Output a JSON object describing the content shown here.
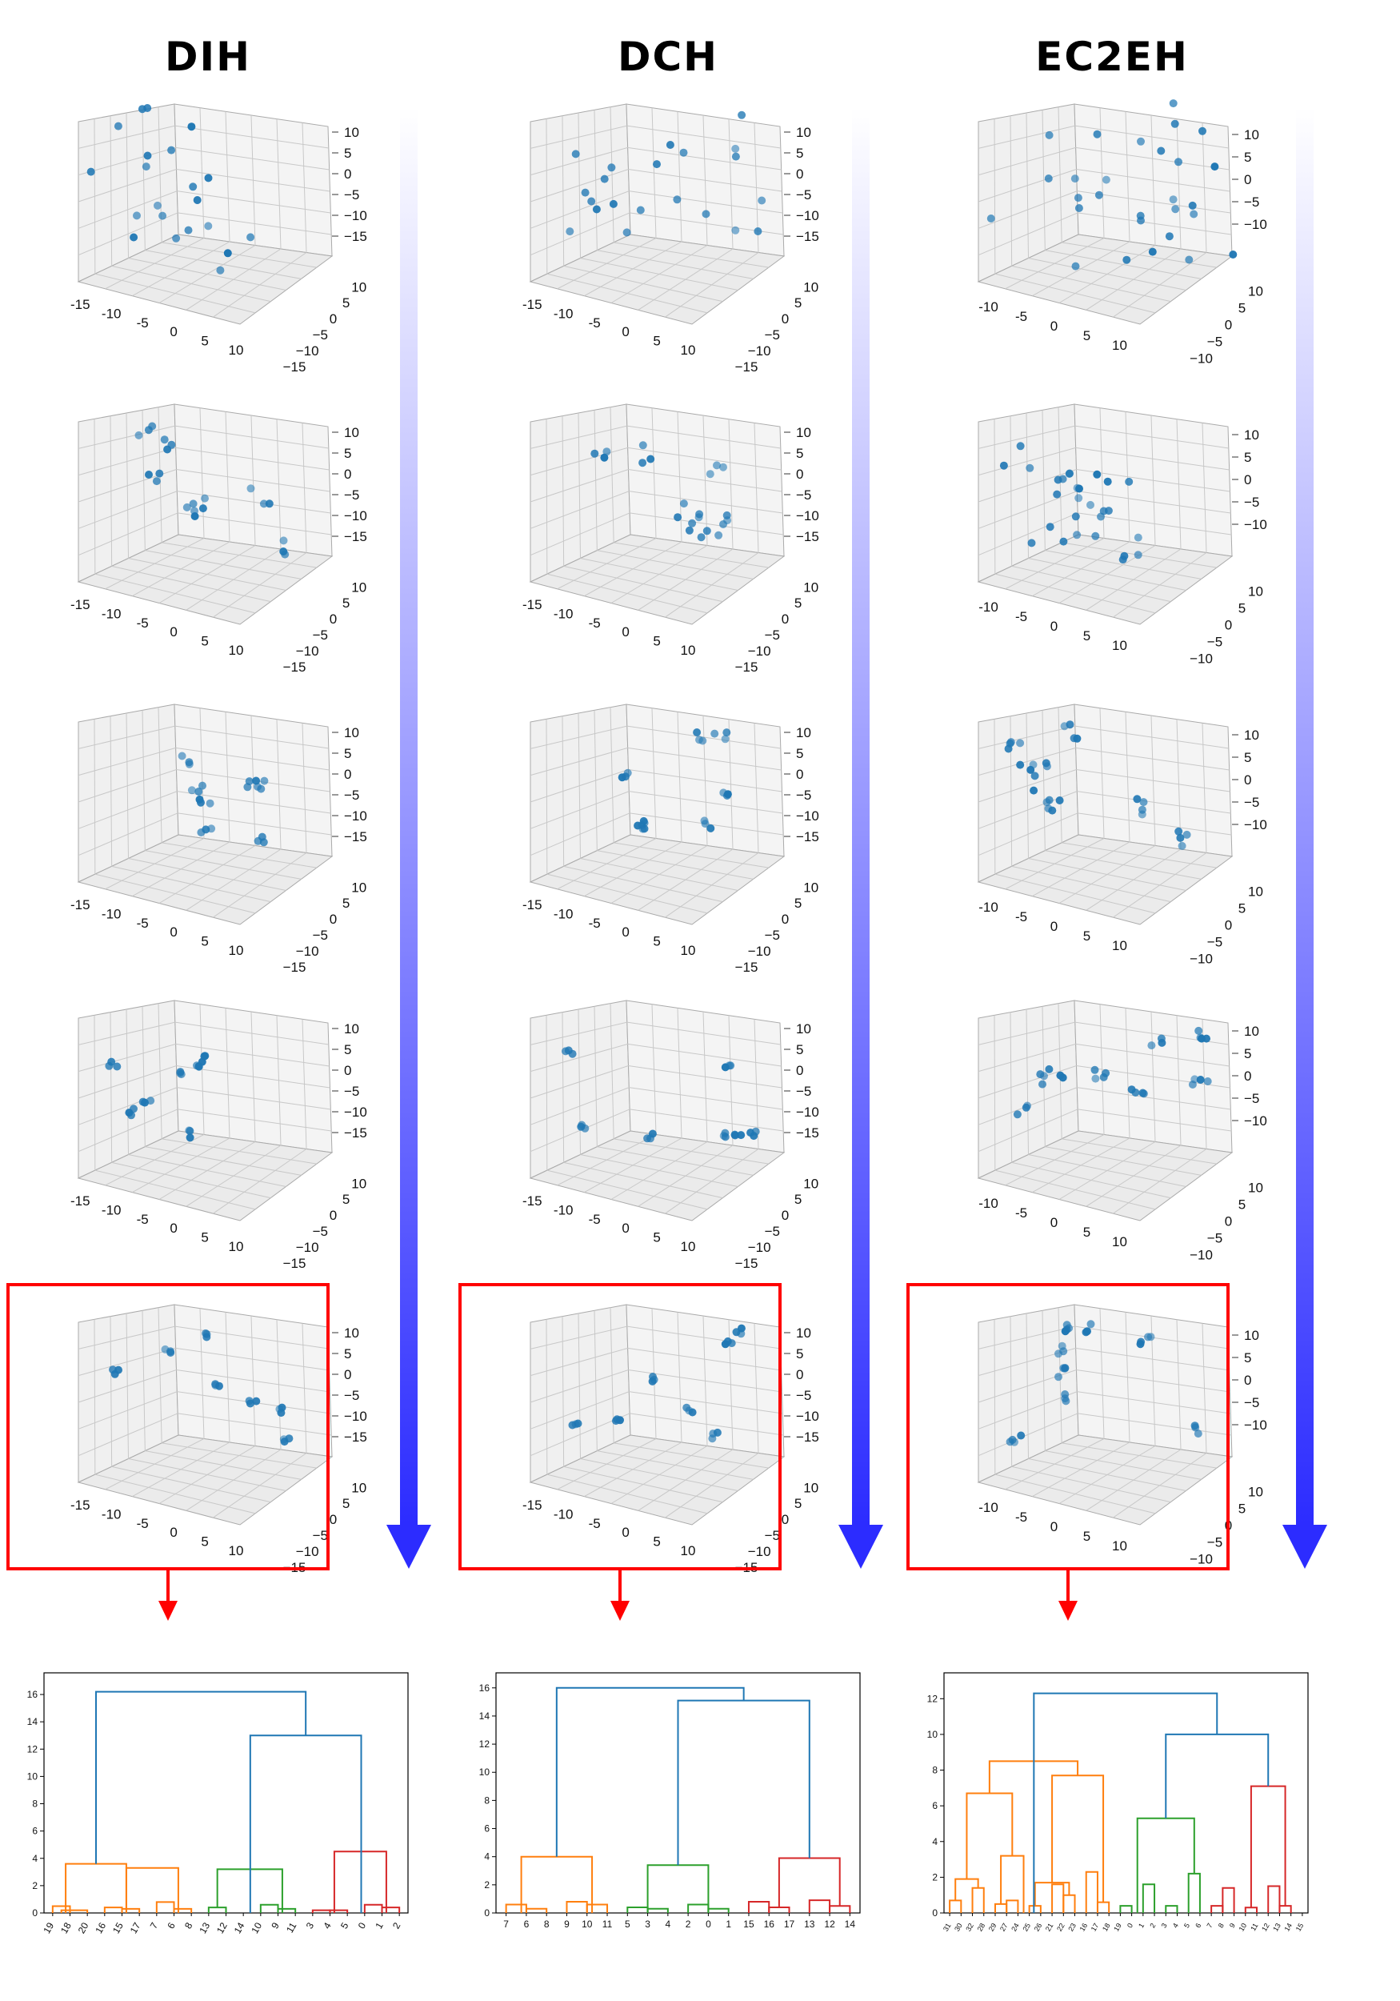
{
  "titles": [
    "DIH",
    "DCH",
    "EC2EH"
  ],
  "colors": {
    "point": "#1f77b4",
    "highlight": "#ff0000",
    "arrow_bottom": "#2c2cff",
    "pane": "#f0f0f0",
    "grid": "#c8c8c8",
    "dendro_top": "#1f77b4",
    "cluster_1": "#ff7f0e",
    "cluster_2": "#2ca02c",
    "cluster_3": "#d62728"
  },
  "chart_data": [
    {
      "type": "scatter3d-grid",
      "method": "DIH",
      "stages": 5,
      "highlighted_stage": 5,
      "x_ticks": [
        "-15",
        "-10",
        "-5",
        "0",
        "5",
        "10"
      ],
      "y_ticks": [
        "10",
        "5",
        "0",
        "−5",
        "−10",
        "−15"
      ],
      "z_ticks": [
        "10",
        "5",
        "0",
        "−5",
        "−10",
        "−15"
      ],
      "xlim": [
        -15,
        10
      ],
      "ylim": [
        -15,
        10
      ],
      "zlim": [
        -15,
        10
      ]
    },
    {
      "type": "scatter3d-grid",
      "method": "DCH",
      "stages": 5,
      "highlighted_stage": 5,
      "x_ticks": [
        "-15",
        "-10",
        "-5",
        "0",
        "5",
        "10"
      ],
      "y_ticks": [
        "10",
        "5",
        "0",
        "−5",
        "−10",
        "−15"
      ],
      "z_ticks": [
        "10",
        "5",
        "0",
        "−5",
        "−10",
        "−15"
      ],
      "xlim": [
        -15,
        10
      ],
      "ylim": [
        -15,
        10
      ],
      "zlim": [
        -15,
        10
      ]
    },
    {
      "type": "scatter3d-grid",
      "method": "EC2EH",
      "stages": 5,
      "highlighted_stage": 5,
      "x_ticks": [
        "-10",
        "-5",
        "0",
        "5",
        "10"
      ],
      "y_ticks": [
        "10",
        "5",
        "0",
        "−5",
        "−10"
      ],
      "z_ticks": [
        "10",
        "5",
        "0",
        "−5",
        "−10"
      ],
      "xlim": [
        -12,
        10
      ],
      "ylim": [
        -12,
        10
      ],
      "zlim": [
        -12,
        10
      ]
    },
    {
      "type": "dendrogram",
      "method": "DIH",
      "yticks": [
        "0",
        "2",
        "4",
        "6",
        "8",
        "10",
        "12",
        "14",
        "16"
      ],
      "ylim": [
        0,
        17
      ],
      "leaves": [
        "19",
        "18",
        "20",
        "16",
        "15",
        "17",
        "7",
        "6",
        "8",
        "13",
        "12",
        "14",
        "10",
        "9",
        "11",
        "3",
        "4",
        "5",
        "0",
        "1",
        "2"
      ],
      "links": [
        {
          "l": 0,
          "r": 1,
          "h": 0.5,
          "c": "cluster_1"
        },
        {
          "l": 0.5,
          "r": 2,
          "h": 0.2,
          "c": "cluster_1"
        },
        {
          "l": 3,
          "r": 4,
          "h": 0.4,
          "c": "cluster_1"
        },
        {
          "l": 4,
          "r": 5,
          "h": 0.3,
          "c": "cluster_1"
        },
        {
          "l": 6,
          "r": 7,
          "h": 0.8,
          "c": "cluster_1"
        },
        {
          "l": 7,
          "r": 8,
          "h": 0.3,
          "c": "cluster_1"
        },
        {
          "l": 0.75,
          "r": 4.25,
          "h": 3.6,
          "c": "cluster_1"
        },
        {
          "l": 4.25,
          "r": 7.25,
          "h": 3.3,
          "c": "cluster_1"
        },
        {
          "l": 9,
          "r": 10,
          "h": 0.4,
          "c": "cluster_2"
        },
        {
          "l": 12,
          "r": 13,
          "h": 0.6,
          "c": "cluster_2"
        },
        {
          "l": 13,
          "r": 14,
          "h": 0.3,
          "c": "cluster_2"
        },
        {
          "l": 9.5,
          "r": 13.25,
          "h": 3.2,
          "c": "cluster_2"
        },
        {
          "l": 15,
          "r": 16,
          "h": 0.2,
          "c": "cluster_3"
        },
        {
          "l": 16,
          "r": 17,
          "h": 0.2,
          "c": "cluster_3"
        },
        {
          "l": 18,
          "r": 19,
          "h": 0.6,
          "c": "cluster_3"
        },
        {
          "l": 19,
          "r": 20,
          "h": 0.4,
          "c": "cluster_3"
        },
        {
          "l": 16.25,
          "r": 19.25,
          "h": 4.5,
          "c": "cluster_3"
        },
        {
          "l": 11.4,
          "r": 17.8,
          "h": 13.0,
          "c": "dendro_top"
        },
        {
          "l": 2.5,
          "r": 14.6,
          "h": 16.2,
          "c": "dendro_top"
        }
      ]
    },
    {
      "type": "dendrogram",
      "method": "DCH",
      "yticks": [
        "0",
        "2",
        "4",
        "6",
        "8",
        "10",
        "12",
        "14",
        "16"
      ],
      "ylim": [
        0,
        16.5
      ],
      "leaves": [
        "7",
        "6",
        "8",
        "9",
        "10",
        "11",
        "5",
        "3",
        "4",
        "2",
        "0",
        "1",
        "15",
        "16",
        "17",
        "13",
        "12",
        "14"
      ],
      "links": [
        {
          "l": 0,
          "r": 1,
          "h": 0.6,
          "c": "cluster_1"
        },
        {
          "l": 1,
          "r": 2,
          "h": 0.3,
          "c": "cluster_1"
        },
        {
          "l": 3,
          "r": 4,
          "h": 0.8,
          "c": "cluster_1"
        },
        {
          "l": 4,
          "r": 5,
          "h": 0.6,
          "c": "cluster_1"
        },
        {
          "l": 0.75,
          "r": 4.25,
          "h": 4.0,
          "c": "cluster_1"
        },
        {
          "l": 6,
          "r": 7,
          "h": 0.4,
          "c": "cluster_2"
        },
        {
          "l": 7,
          "r": 8,
          "h": 0.3,
          "c": "cluster_2"
        },
        {
          "l": 9,
          "r": 10,
          "h": 0.6,
          "c": "cluster_2"
        },
        {
          "l": 10,
          "r": 11,
          "h": 0.3,
          "c": "cluster_2"
        },
        {
          "l": 7,
          "r": 10,
          "h": 3.4,
          "c": "cluster_2"
        },
        {
          "l": 12,
          "r": 13,
          "h": 0.8,
          "c": "cluster_3"
        },
        {
          "l": 13,
          "r": 14,
          "h": 0.4,
          "c": "cluster_3"
        },
        {
          "l": 15,
          "r": 16,
          "h": 0.9,
          "c": "cluster_3"
        },
        {
          "l": 16,
          "r": 17,
          "h": 0.5,
          "c": "cluster_3"
        },
        {
          "l": 13.5,
          "r": 16.5,
          "h": 3.9,
          "c": "cluster_3"
        },
        {
          "l": 8.5,
          "r": 15,
          "h": 15.1,
          "c": "dendro_top"
        },
        {
          "l": 2.5,
          "r": 11.75,
          "h": 16.0,
          "c": "dendro_top"
        }
      ]
    },
    {
      "type": "dendrogram",
      "method": "EC2EH",
      "yticks": [
        "0",
        "2",
        "4",
        "6",
        "8",
        "10",
        "12"
      ],
      "ylim": [
        0,
        13
      ],
      "leaves": [
        "31",
        "30",
        "32",
        "28",
        "29",
        "27",
        "24",
        "25",
        "26",
        "21",
        "22",
        "23",
        "16",
        "17",
        "18",
        "19",
        "0",
        "1",
        "2",
        "3",
        "4",
        "5",
        "6",
        "7",
        "8",
        "9",
        "10",
        "11",
        "12",
        "13",
        "14",
        "15"
      ],
      "links": [
        {
          "l": 0,
          "r": 1,
          "h": 0.7,
          "c": "cluster_1"
        },
        {
          "l": 0.5,
          "r": 2.5,
          "h": 1.9,
          "c": "cluster_1"
        },
        {
          "l": 2,
          "r": 3,
          "h": 1.4,
          "c": "cluster_1"
        },
        {
          "l": 4,
          "r": 5,
          "h": 0.5,
          "c": "cluster_1"
        },
        {
          "l": 5,
          "r": 6,
          "h": 0.7,
          "c": "cluster_1"
        },
        {
          "l": 4.5,
          "r": 6.5,
          "h": 3.2,
          "c": "cluster_1"
        },
        {
          "l": 1.5,
          "r": 5.5,
          "h": 6.7,
          "c": "cluster_1"
        },
        {
          "l": 7,
          "r": 8,
          "h": 0.4,
          "c": "cluster_1"
        },
        {
          "l": 9,
          "r": 10,
          "h": 1.6,
          "c": "cluster_1"
        },
        {
          "l": 10,
          "r": 11,
          "h": 1.0,
          "c": "cluster_1"
        },
        {
          "l": 7.5,
          "r": 10.5,
          "h": 1.7,
          "c": "cluster_1"
        },
        {
          "l": 12,
          "r": 13,
          "h": 2.3,
          "c": "cluster_1"
        },
        {
          "l": 13,
          "r": 14,
          "h": 0.6,
          "c": "cluster_1"
        },
        {
          "l": 9,
          "r": 13.5,
          "h": 7.7,
          "c": "cluster_1"
        },
        {
          "l": 3.5,
          "r": 11.25,
          "h": 8.5,
          "c": "cluster_1"
        },
        {
          "l": 15,
          "r": 16,
          "h": 0.4,
          "c": "cluster_2"
        },
        {
          "l": 17,
          "r": 18,
          "h": 1.6,
          "c": "cluster_2"
        },
        {
          "l": 19,
          "r": 20,
          "h": 0.4,
          "c": "cluster_2"
        },
        {
          "l": 21,
          "r": 22,
          "h": 2.2,
          "c": "cluster_2"
        },
        {
          "l": 16.5,
          "r": 21.5,
          "h": 5.3,
          "c": "cluster_2"
        },
        {
          "l": 23,
          "r": 24,
          "h": 0.4,
          "c": "cluster_3"
        },
        {
          "l": 24,
          "r": 25,
          "h": 1.4,
          "c": "cluster_3"
        },
        {
          "l": 26,
          "r": 27,
          "h": 0.3,
          "c": "cluster_3"
        },
        {
          "l": 28,
          "r": 29,
          "h": 1.5,
          "c": "cluster_3"
        },
        {
          "l": 29,
          "r": 30,
          "h": 0.4,
          "c": "cluster_3"
        },
        {
          "l": 26.5,
          "r": 29.5,
          "h": 7.1,
          "c": "cluster_3"
        },
        {
          "l": 19,
          "r": 28,
          "h": 10.0,
          "c": "dendro_top"
        },
        {
          "l": 7.4,
          "r": 23.5,
          "h": 12.3,
          "c": "dendro_top"
        }
      ]
    }
  ]
}
